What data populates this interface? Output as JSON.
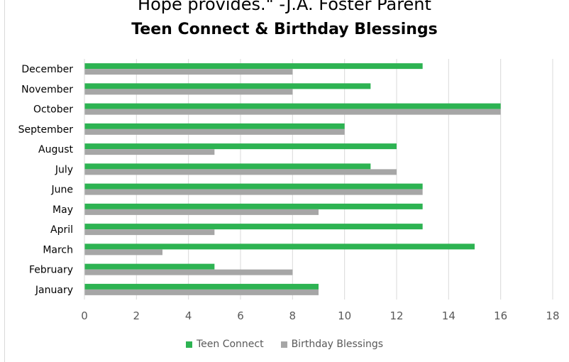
{
  "header": {
    "quote": "Hope provides.\" -J.A. Foster Parent"
  },
  "chart_data": {
    "type": "bar",
    "orientation": "horizontal",
    "title": "Teen Connect & Birthday Blessings",
    "categories": [
      "January",
      "February",
      "March",
      "April",
      "May",
      "June",
      "July",
      "August",
      "September",
      "October",
      "November",
      "December"
    ],
    "series": [
      {
        "name": "Teen Connect",
        "color": "#2db352",
        "values": [
          9,
          5,
          15,
          13,
          13,
          13,
          11,
          12,
          10,
          16,
          11,
          13
        ]
      },
      {
        "name": "Birthday Blessings",
        "color": "#a6a6a6",
        "values": [
          9,
          8,
          3,
          5,
          9,
          13,
          12,
          5,
          10,
          16,
          8,
          8
        ]
      }
    ],
    "xlim": [
      0,
      18
    ],
    "xticks": [
      "0",
      "2",
      "4",
      "6",
      "8",
      "10",
      "12",
      "14",
      "16",
      "18"
    ],
    "grid": true,
    "legend": "bottom"
  }
}
